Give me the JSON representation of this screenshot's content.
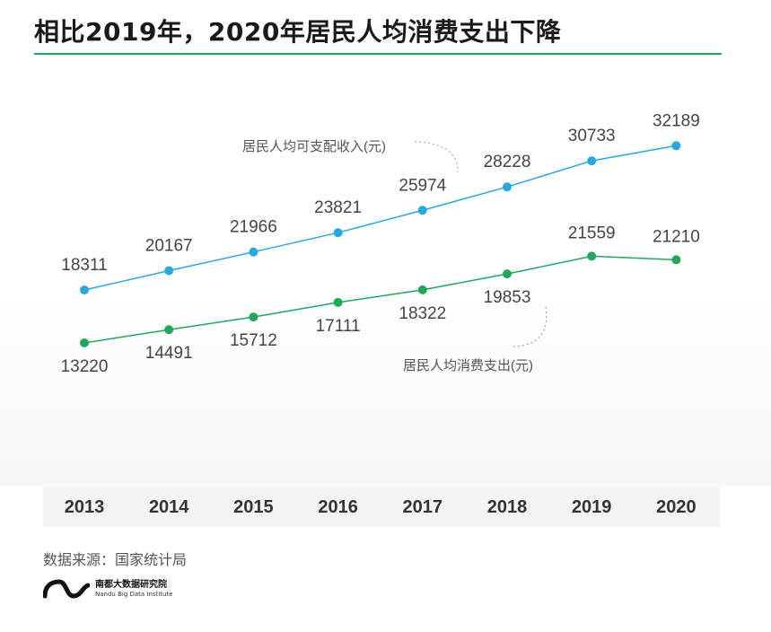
{
  "title": "相比2019年，2020年居民人均消费支出下降",
  "source": "数据来源：国家统计局",
  "logo": {
    "name_cn": "南都大数据研究院",
    "name_en": "Nandu Big Data Institute"
  },
  "colors": {
    "accent": "#1fa85a",
    "income": "#29a8e0",
    "consumption": "#1fa85a",
    "label": "#444444"
  },
  "chart_data": {
    "type": "line",
    "categories": [
      "2013",
      "2014",
      "2015",
      "2016",
      "2017",
      "2018",
      "2019",
      "2020"
    ],
    "series": [
      {
        "name": "居民人均可支配收入(元)",
        "values": [
          18311,
          20167,
          21966,
          23821,
          25974,
          28228,
          30733,
          32189
        ]
      },
      {
        "name": "居民人均消费支出(元)",
        "values": [
          13220,
          14491,
          15712,
          17111,
          18322,
          19853,
          21559,
          21210
        ]
      }
    ],
    "title": "相比2019年，2020年居民人均消费支出下降",
    "xlabel": "",
    "ylabel": "",
    "grid": false,
    "legend": "inline annotations"
  }
}
